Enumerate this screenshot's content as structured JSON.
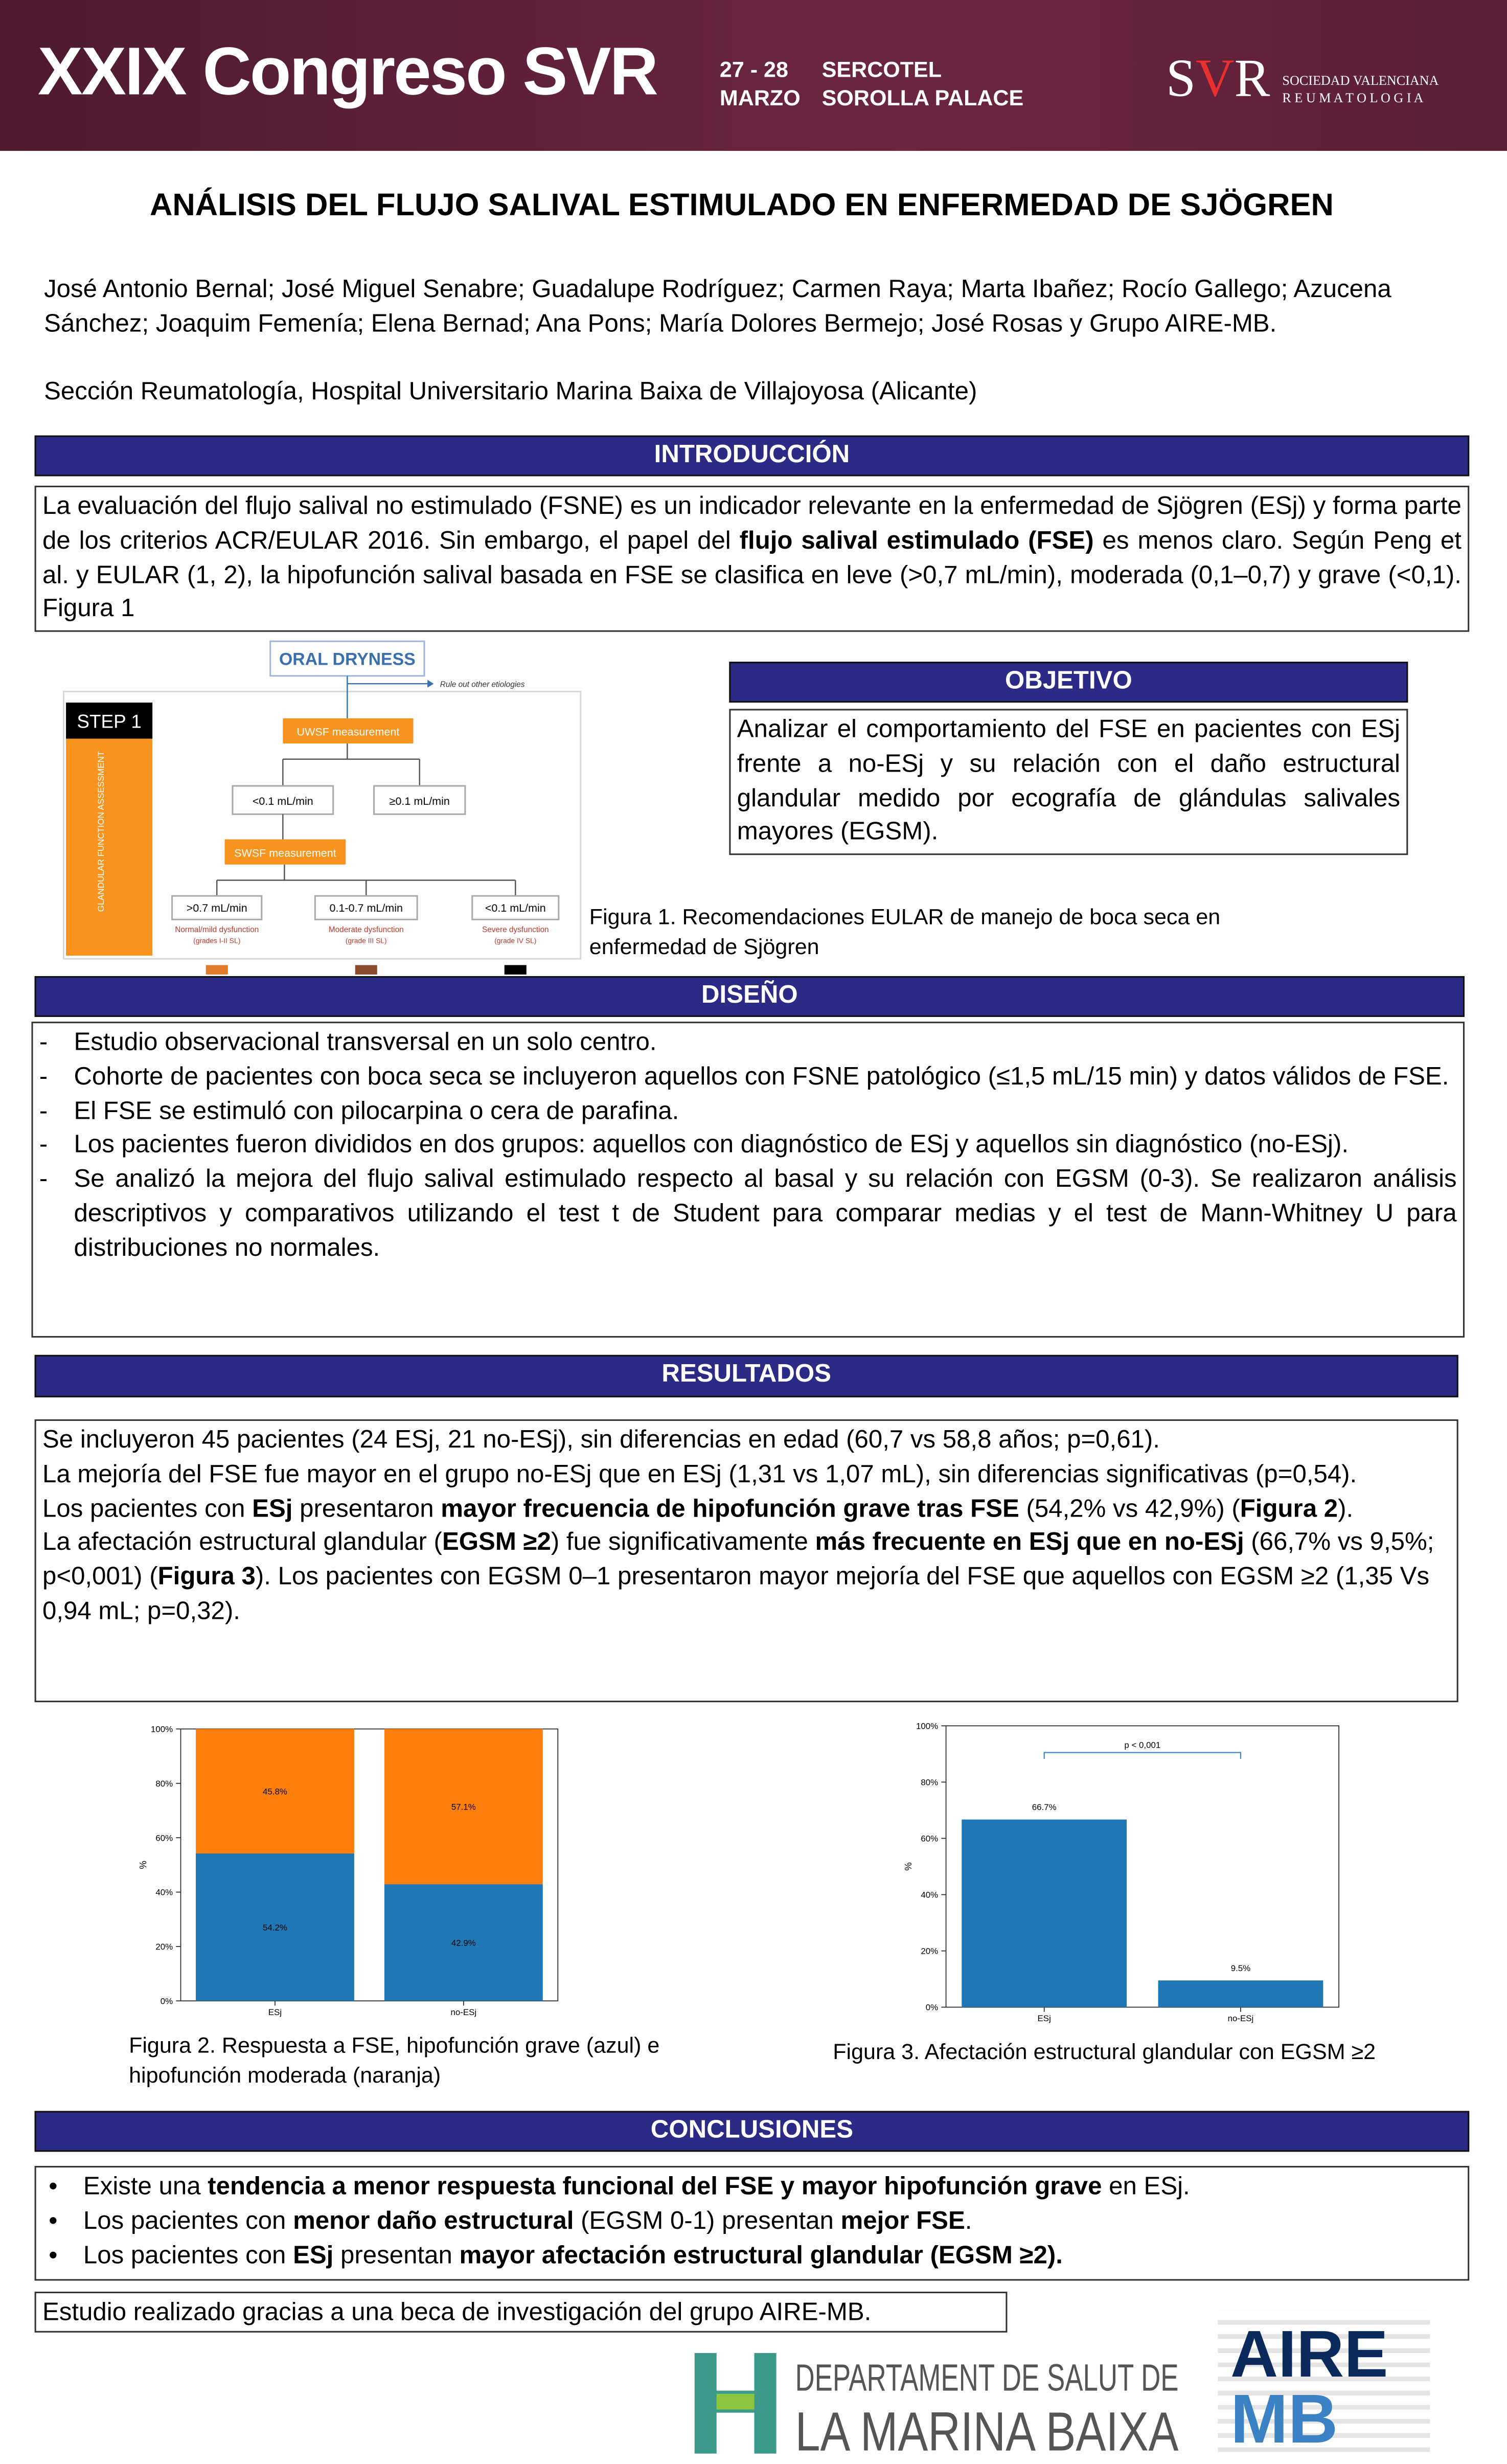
{
  "header": {
    "event": "XXIX Congreso SVR",
    "dates": [
      "27 - 28",
      "MARZO"
    ],
    "venue": [
      "SERCOTEL",
      "SOROLLA PALACE"
    ],
    "logo": [
      "S",
      "V",
      "R"
    ],
    "society": [
      "SOCIEDAD VALENCIANA",
      "R E U M A T O L O G I A"
    ]
  },
  "title": "ANÁLISIS DEL FLUJO SALIVAL ESTIMULADO EN ENFERMEDAD DE SJÖGREN",
  "authors": "José Antonio Bernal; José Miguel Senabre; Guadalupe Rodríguez; Carmen Raya; Marta Ibañez; Rocío Gallego; Azucena Sánchez; Joaquim Femenía; Elena Bernad; Ana Pons; María Dolores Bermejo; José Rosas y Grupo AIRE-MB.",
  "affiliation": "Sección Reumatología, Hospital Universitario Marina Baixa de Villajoyosa (Alicante)",
  "introduction": {
    "heading": "INTRODUCCIÓN",
    "text": [
      "La evaluación del flujo salival no estimulado (FSNE) es un indicador relevante en la enfermedad de Sjögren (ESj) y forma parte de los criterios ACR/EULAR 2016. Sin embargo, el papel del ",
      {
        "b": "flujo salival estimulado (FSE)"
      },
      " es menos claro. Según Peng et al. y EULAR (1, 2), la hipofunción salival basada en FSE se clasifica en leve (>0,7 mL/min), moderada (0,1–0,7) y grave (<0,1). Figura 1"
    ]
  },
  "objective": {
    "heading": "OBJETIVO",
    "text": "Analizar el comportamiento del FSE en pacientes con ESj frente a no-ESj y su relación con el daño estructural glandular medido por ecografía de glándulas salivales mayores (EGSM)."
  },
  "figure1": {
    "top": "ORAL DRYNESS",
    "side_note": "Rule out other etiologies",
    "step": "STEP 1",
    "column": "GLANDULAR FUNCTION ASSESSMENT",
    "uwsf": "UWSF measurement",
    "uwsf_low": "<0.1 mL/min",
    "uwsf_high": "≥0.1 mL/min",
    "swsf": "SWSF measurement",
    "outcomes": [
      {
        "range": ">0.7 mL/min",
        "label": "Normal/mild dysfunction",
        "grade": "(grades I-II SL)"
      },
      {
        "range": "0.1-0.7 mL/min",
        "label": "Moderate dysfunction",
        "grade": "(grade III SL)"
      },
      {
        "range": "<0.1 mL/min",
        "label": "Severe dysfunction",
        "grade": "(grade IV SL)"
      }
    ],
    "caption": "Figura 1. Recomendaciones EULAR de manejo de boca seca en enfermedad de Sjögren"
  },
  "design": {
    "heading": "DISEÑO",
    "bullet": "-",
    "items": [
      "Estudio observacional transversal en un solo centro.",
      "Cohorte de pacientes con boca seca se incluyeron aquellos con FSNE patológico (≤1,5 mL/15 min) y datos válidos de FSE.",
      "El FSE se estimuló con pilocarpina o cera de parafina.",
      "Los pacientes fueron divididos en dos grupos: aquellos con diagnóstico de ESj y aquellos sin diagnóstico (no-ESj).",
      "Se analizó la mejora del flujo salival estimulado respecto al basal y su relación con EGSM (0-3). Se realizaron análisis descriptivos y comparativos utilizando el test t de Student para comparar medias y el test de Mann-Whitney U para distribuciones no normales."
    ]
  },
  "results": {
    "heading": "RESULTADOS",
    "paragraphs": [
      [
        "Se incluyeron 45 pacientes (24 ESj, 21 no-ESj), sin diferencias en edad (60,7 vs 58,8 años; p=0,61)."
      ],
      [
        "La mejoría del FSE fue mayor en el grupo no-ESj que en ESj (1,31 vs 1,07 mL), sin diferencias significativas (p=0,54)."
      ],
      [
        "Los pacientes con ",
        {
          "b": "ESj"
        },
        " presentaron ",
        {
          "b": "mayor frecuencia de hipofunción grave tras FSE"
        },
        " (54,2% vs 42,9%) (",
        {
          "b": "Figura 2"
        },
        ")."
      ],
      [
        "La afectación estructural glandular (",
        {
          "b": "EGSM ≥2"
        },
        ") fue significativamente ",
        {
          "b": "más frecuente en ESj que en no-ESj"
        },
        " (66,7% vs 9,5%; p<0,001) (",
        {
          "b": "Figura 3"
        },
        "). Los pacientes con EGSM 0–1 presentaron mayor mejoría del FSE que aquellos con EGSM ≥2 (1,35 Vs 0,94 mL; p=0,32)."
      ]
    ]
  },
  "chart_data": [
    {
      "type": "stacked_bar",
      "caption": "Figura 2. Respuesta a FSE, hipofunción grave (azul) e hipofunción moderada (naranja)",
      "ylabel": "%",
      "categories": [
        "ESj",
        "no-ESj"
      ],
      "series": [
        {
          "color": "#1f77b4",
          "values": [
            54.2,
            42.9
          ],
          "value_labels": [
            "54.2%",
            "42.9%"
          ]
        },
        {
          "color": "#ff7f0e",
          "values": [
            45.8,
            57.1
          ],
          "value_labels": [
            "45.8%",
            "57.1%"
          ]
        }
      ],
      "ylim": [
        0,
        100
      ],
      "yticks": [
        {
          "value": 0,
          "label": "0%"
        },
        {
          "value": 20,
          "label": "20%"
        },
        {
          "value": 40,
          "label": "40%"
        },
        {
          "value": 60,
          "label": "60%"
        },
        {
          "value": 80,
          "label": "80%"
        },
        {
          "value": 100,
          "label": "100%"
        }
      ],
      "grid": false
    },
    {
      "type": "bar",
      "caption": "Figura 3. Afectación estructural glandular con EGSM ≥2",
      "ylabel": "%",
      "categories": [
        "ESj",
        "no-ESj"
      ],
      "color": "#1f77b4",
      "values": [
        66.7,
        9.5
      ],
      "value_labels": [
        "66.7%",
        "9.5%"
      ],
      "annotation": "p < 0,001",
      "ylim": [
        0,
        100
      ],
      "yticks": [
        {
          "value": 0,
          "label": "0%"
        },
        {
          "value": 20,
          "label": "20%"
        },
        {
          "value": 40,
          "label": "40%"
        },
        {
          "value": 60,
          "label": "60%"
        },
        {
          "value": 80,
          "label": "80%"
        },
        {
          "value": 100,
          "label": "100%"
        }
      ],
      "grid": false
    }
  ],
  "conclusions": {
    "heading": "CONCLUSIONES",
    "bullet": "•",
    "items": [
      [
        "Existe una ",
        {
          "b": "tendencia a menor respuesta funcional del FSE y mayor hipofunción grave"
        },
        " en ESj."
      ],
      [
        "Los pacientes con ",
        {
          "b": "menor daño estructural"
        },
        " (EGSM 0-1) presentan ",
        {
          "b": "mejor FSE"
        },
        "."
      ],
      [
        "Los pacientes con ",
        {
          "b": "ESj"
        },
        " presentan ",
        {
          "b": "mayor afectación estructural glandular (EGSM ≥2)."
        }
      ]
    ]
  },
  "acknowledgement": "Estudio realizado gracias a una beca de investigación del grupo AIRE-MB.",
  "footer": {
    "department": [
      "DEPARTAMENT DE SALUT DE",
      "LA MARINA BAIXA"
    ],
    "group": [
      "AIRE",
      "MB"
    ]
  }
}
